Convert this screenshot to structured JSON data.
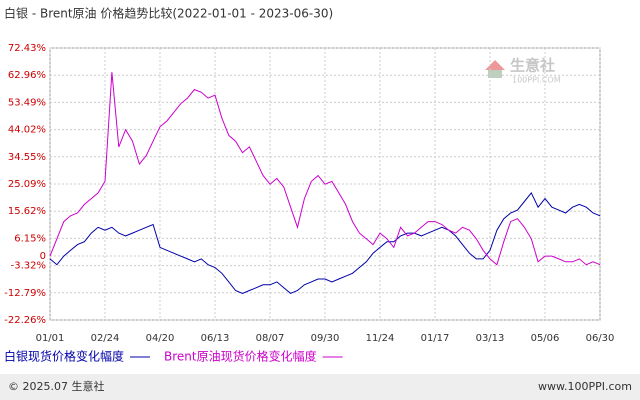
{
  "chart_data": {
    "type": "line",
    "title": "白银 - Brent原油 价格趋势比较(2022-01-01 - 2023-06-30)",
    "categories": [
      "01/01",
      null,
      null,
      null,
      null,
      null,
      null,
      null,
      "02/24",
      null,
      null,
      null,
      null,
      null,
      null,
      null,
      "04/20",
      null,
      null,
      null,
      null,
      null,
      null,
      null,
      "06/13",
      null,
      null,
      null,
      null,
      null,
      null,
      null,
      "08/07",
      null,
      null,
      null,
      null,
      null,
      null,
      null,
      "09/30",
      null,
      null,
      null,
      null,
      null,
      null,
      null,
      "11/24",
      null,
      null,
      null,
      null,
      null,
      null,
      null,
      "01/17",
      null,
      null,
      null,
      null,
      null,
      null,
      null,
      "03/13",
      null,
      null,
      null,
      null,
      null,
      null,
      null,
      "05/06",
      null,
      null,
      null,
      null,
      null,
      null,
      null,
      "06/30"
    ],
    "series": [
      {
        "name": "白银现货价格变化幅度",
        "color": "#0000aa",
        "values": [
          -1,
          -3,
          0,
          2,
          4,
          5,
          8,
          10,
          9,
          10,
          8,
          7,
          8,
          9,
          10,
          11,
          3,
          2,
          1,
          0,
          -1,
          -2,
          -1,
          -3,
          -4,
          -6,
          -9,
          -12,
          -13,
          -12,
          -11,
          -10,
          -10,
          -9,
          -11,
          -13,
          -12,
          -10,
          -9,
          -8,
          -8,
          -9,
          -8,
          -7,
          -6,
          -4,
          -2,
          1,
          3,
          5,
          5,
          7,
          8,
          8,
          7,
          8,
          9,
          10,
          9,
          7,
          4,
          1,
          -1,
          -1,
          2,
          9,
          13,
          15,
          16,
          19,
          22,
          17,
          20,
          17,
          16,
          15,
          17,
          18,
          17,
          15,
          14
        ]
      },
      {
        "name": "Brent原油现货价格变化幅度",
        "color": "#cc00cc",
        "values": [
          0,
          6,
          12,
          14,
          15,
          18,
          20,
          22,
          26,
          64,
          38,
          44,
          40,
          32,
          35,
          40,
          45,
          47,
          50,
          53,
          55,
          58,
          57,
          55,
          56,
          48,
          42,
          40,
          36,
          38,
          33,
          28,
          25,
          27,
          24,
          17,
          10,
          20,
          26,
          28,
          25,
          26,
          22,
          18,
          12,
          8,
          6,
          4,
          8,
          6,
          3,
          10,
          7,
          8,
          10,
          12,
          12,
          11,
          9,
          8,
          10,
          9,
          6,
          2,
          -1,
          -3,
          5,
          12,
          13,
          10,
          6,
          -2,
          0,
          0,
          -1,
          -2,
          -2,
          -1,
          -3,
          -2,
          -3
        ]
      }
    ],
    "ylim": [
      -22.26,
      72.43
    ],
    "yticks": [
      {
        "value": 72.43,
        "label": "72.43%"
      },
      {
        "value": 62.96,
        "label": "62.96%"
      },
      {
        "value": 53.49,
        "label": "53.49%"
      },
      {
        "value": 44.02,
        "label": "44.02%"
      },
      {
        "value": 34.55,
        "label": "34.55%"
      },
      {
        "value": 25.09,
        "label": "25.09%"
      },
      {
        "value": 15.62,
        "label": "15.62%"
      },
      {
        "value": 6.15,
        "label": "6.15%"
      },
      0,
      {
        "value": -3.32,
        "label": "-3.32%"
      },
      {
        "value": -12.79,
        "label": "-12.79%"
      },
      {
        "value": -22.26,
        "label": "-22.26%"
      }
    ],
    "grid": true,
    "watermark": {
      "name": "生意社",
      "site": "100PPI.COM"
    },
    "footer": {
      "copyright": "© 2025.07 生意社",
      "site": "www.100PPI.com"
    }
  }
}
